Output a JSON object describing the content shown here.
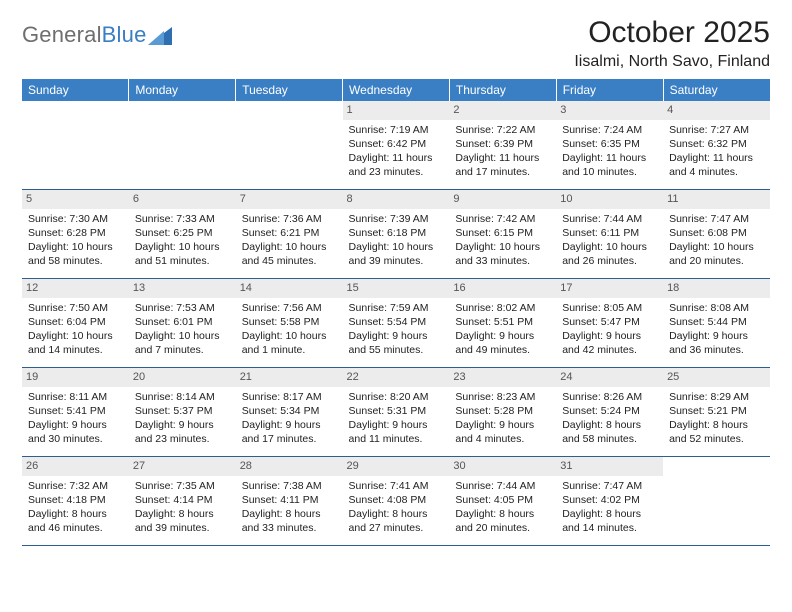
{
  "logo": {
    "text_gray": "General",
    "text_blue": "Blue",
    "tri_color": "#2f6eb0"
  },
  "title": "October 2025",
  "location": "Iisalmi, North Savo, Finland",
  "header_bg": "#3a7fc4",
  "header_fg": "#ffffff",
  "daynum_bg": "#ececec",
  "rule_color": "#2e5e8f",
  "weekdays": [
    "Sunday",
    "Monday",
    "Tuesday",
    "Wednesday",
    "Thursday",
    "Friday",
    "Saturday"
  ],
  "weeks": [
    [
      {
        "n": "",
        "sr": "",
        "ss": "",
        "d1": "",
        "d2": ""
      },
      {
        "n": "",
        "sr": "",
        "ss": "",
        "d1": "",
        "d2": ""
      },
      {
        "n": "",
        "sr": "",
        "ss": "",
        "d1": "",
        "d2": ""
      },
      {
        "n": "1",
        "sr": "Sunrise: 7:19 AM",
        "ss": "Sunset: 6:42 PM",
        "d1": "Daylight: 11 hours",
        "d2": "and 23 minutes."
      },
      {
        "n": "2",
        "sr": "Sunrise: 7:22 AM",
        "ss": "Sunset: 6:39 PM",
        "d1": "Daylight: 11 hours",
        "d2": "and 17 minutes."
      },
      {
        "n": "3",
        "sr": "Sunrise: 7:24 AM",
        "ss": "Sunset: 6:35 PM",
        "d1": "Daylight: 11 hours",
        "d2": "and 10 minutes."
      },
      {
        "n": "4",
        "sr": "Sunrise: 7:27 AM",
        "ss": "Sunset: 6:32 PM",
        "d1": "Daylight: 11 hours",
        "d2": "and 4 minutes."
      }
    ],
    [
      {
        "n": "5",
        "sr": "Sunrise: 7:30 AM",
        "ss": "Sunset: 6:28 PM",
        "d1": "Daylight: 10 hours",
        "d2": "and 58 minutes."
      },
      {
        "n": "6",
        "sr": "Sunrise: 7:33 AM",
        "ss": "Sunset: 6:25 PM",
        "d1": "Daylight: 10 hours",
        "d2": "and 51 minutes."
      },
      {
        "n": "7",
        "sr": "Sunrise: 7:36 AM",
        "ss": "Sunset: 6:21 PM",
        "d1": "Daylight: 10 hours",
        "d2": "and 45 minutes."
      },
      {
        "n": "8",
        "sr": "Sunrise: 7:39 AM",
        "ss": "Sunset: 6:18 PM",
        "d1": "Daylight: 10 hours",
        "d2": "and 39 minutes."
      },
      {
        "n": "9",
        "sr": "Sunrise: 7:42 AM",
        "ss": "Sunset: 6:15 PM",
        "d1": "Daylight: 10 hours",
        "d2": "and 33 minutes."
      },
      {
        "n": "10",
        "sr": "Sunrise: 7:44 AM",
        "ss": "Sunset: 6:11 PM",
        "d1": "Daylight: 10 hours",
        "d2": "and 26 minutes."
      },
      {
        "n": "11",
        "sr": "Sunrise: 7:47 AM",
        "ss": "Sunset: 6:08 PM",
        "d1": "Daylight: 10 hours",
        "d2": "and 20 minutes."
      }
    ],
    [
      {
        "n": "12",
        "sr": "Sunrise: 7:50 AM",
        "ss": "Sunset: 6:04 PM",
        "d1": "Daylight: 10 hours",
        "d2": "and 14 minutes."
      },
      {
        "n": "13",
        "sr": "Sunrise: 7:53 AM",
        "ss": "Sunset: 6:01 PM",
        "d1": "Daylight: 10 hours",
        "d2": "and 7 minutes."
      },
      {
        "n": "14",
        "sr": "Sunrise: 7:56 AM",
        "ss": "Sunset: 5:58 PM",
        "d1": "Daylight: 10 hours",
        "d2": "and 1 minute."
      },
      {
        "n": "15",
        "sr": "Sunrise: 7:59 AM",
        "ss": "Sunset: 5:54 PM",
        "d1": "Daylight: 9 hours",
        "d2": "and 55 minutes."
      },
      {
        "n": "16",
        "sr": "Sunrise: 8:02 AM",
        "ss": "Sunset: 5:51 PM",
        "d1": "Daylight: 9 hours",
        "d2": "and 49 minutes."
      },
      {
        "n": "17",
        "sr": "Sunrise: 8:05 AM",
        "ss": "Sunset: 5:47 PM",
        "d1": "Daylight: 9 hours",
        "d2": "and 42 minutes."
      },
      {
        "n": "18",
        "sr": "Sunrise: 8:08 AM",
        "ss": "Sunset: 5:44 PM",
        "d1": "Daylight: 9 hours",
        "d2": "and 36 minutes."
      }
    ],
    [
      {
        "n": "19",
        "sr": "Sunrise: 8:11 AM",
        "ss": "Sunset: 5:41 PM",
        "d1": "Daylight: 9 hours",
        "d2": "and 30 minutes."
      },
      {
        "n": "20",
        "sr": "Sunrise: 8:14 AM",
        "ss": "Sunset: 5:37 PM",
        "d1": "Daylight: 9 hours",
        "d2": "and 23 minutes."
      },
      {
        "n": "21",
        "sr": "Sunrise: 8:17 AM",
        "ss": "Sunset: 5:34 PM",
        "d1": "Daylight: 9 hours",
        "d2": "and 17 minutes."
      },
      {
        "n": "22",
        "sr": "Sunrise: 8:20 AM",
        "ss": "Sunset: 5:31 PM",
        "d1": "Daylight: 9 hours",
        "d2": "and 11 minutes."
      },
      {
        "n": "23",
        "sr": "Sunrise: 8:23 AM",
        "ss": "Sunset: 5:28 PM",
        "d1": "Daylight: 9 hours",
        "d2": "and 4 minutes."
      },
      {
        "n": "24",
        "sr": "Sunrise: 8:26 AM",
        "ss": "Sunset: 5:24 PM",
        "d1": "Daylight: 8 hours",
        "d2": "and 58 minutes."
      },
      {
        "n": "25",
        "sr": "Sunrise: 8:29 AM",
        "ss": "Sunset: 5:21 PM",
        "d1": "Daylight: 8 hours",
        "d2": "and 52 minutes."
      }
    ],
    [
      {
        "n": "26",
        "sr": "Sunrise: 7:32 AM",
        "ss": "Sunset: 4:18 PM",
        "d1": "Daylight: 8 hours",
        "d2": "and 46 minutes."
      },
      {
        "n": "27",
        "sr": "Sunrise: 7:35 AM",
        "ss": "Sunset: 4:14 PM",
        "d1": "Daylight: 8 hours",
        "d2": "and 39 minutes."
      },
      {
        "n": "28",
        "sr": "Sunrise: 7:38 AM",
        "ss": "Sunset: 4:11 PM",
        "d1": "Daylight: 8 hours",
        "d2": "and 33 minutes."
      },
      {
        "n": "29",
        "sr": "Sunrise: 7:41 AM",
        "ss": "Sunset: 4:08 PM",
        "d1": "Daylight: 8 hours",
        "d2": "and 27 minutes."
      },
      {
        "n": "30",
        "sr": "Sunrise: 7:44 AM",
        "ss": "Sunset: 4:05 PM",
        "d1": "Daylight: 8 hours",
        "d2": "and 20 minutes."
      },
      {
        "n": "31",
        "sr": "Sunrise: 7:47 AM",
        "ss": "Sunset: 4:02 PM",
        "d1": "Daylight: 8 hours",
        "d2": "and 14 minutes."
      },
      {
        "n": "",
        "sr": "",
        "ss": "",
        "d1": "",
        "d2": ""
      }
    ]
  ]
}
